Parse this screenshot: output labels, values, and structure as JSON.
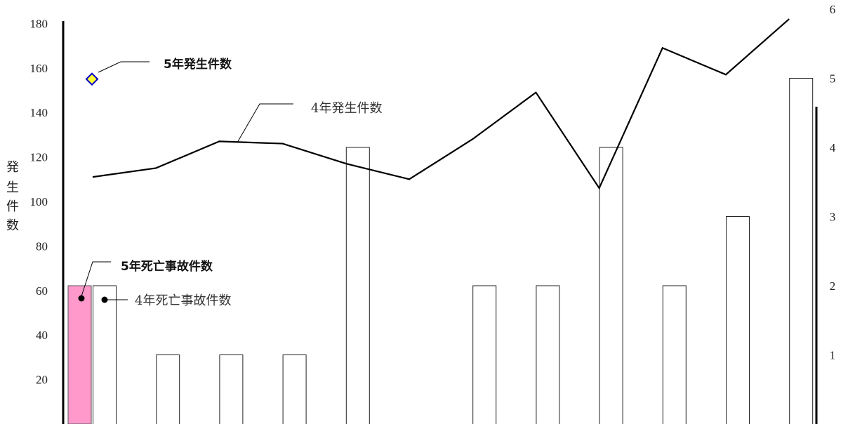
{
  "chart_data": {
    "type": "bar",
    "ylabel": "発生件数",
    "y_left": {
      "ylim": [
        0,
        180
      ],
      "ticks": [
        20,
        40,
        60,
        80,
        100,
        120,
        140,
        160,
        180
      ]
    },
    "y_right": {
      "ylim": [
        0,
        6
      ],
      "ticks": [
        1,
        2,
        3,
        4,
        5,
        6
      ]
    },
    "bar_colors": {
      "r5_fatal": "#ff99cc",
      "r4_fatal": "#ffffff"
    },
    "series": [
      {
        "name": "5年死亡事故件数",
        "kind": "bar",
        "axis": "right",
        "values": [
          2,
          null,
          null,
          null,
          null,
          null,
          null,
          null,
          null,
          null,
          null,
          null
        ]
      },
      {
        "name": "4年死亡事故件数",
        "kind": "bar",
        "axis": "right",
        "values": [
          2,
          1,
          1,
          1,
          4,
          0,
          2,
          2,
          4,
          2,
          3,
          5
        ]
      },
      {
        "name": "4年発生件数",
        "kind": "line",
        "axis": "left",
        "values": [
          111,
          115,
          127,
          126,
          117,
          110,
          128,
          149,
          106,
          169,
          157,
          182
        ]
      },
      {
        "name": "5年発生件数",
        "kind": "point",
        "axis": "left",
        "values": [
          155,
          null,
          null,
          null,
          null,
          null,
          null,
          null,
          null,
          null,
          null,
          null
        ]
      }
    ],
    "annotations": [
      {
        "text": "5年発生件数",
        "bold": true,
        "series": "5年発生件数"
      },
      {
        "text": "4年発生件数",
        "bold": false,
        "series": "4年発生件数"
      },
      {
        "text": "5年死亡事故件数",
        "bold": true,
        "series": "5年死亡事故件数"
      },
      {
        "text": "4年死亡事故件数",
        "bold": false,
        "series": "4年死亡事故件数"
      }
    ],
    "grid": false
  }
}
